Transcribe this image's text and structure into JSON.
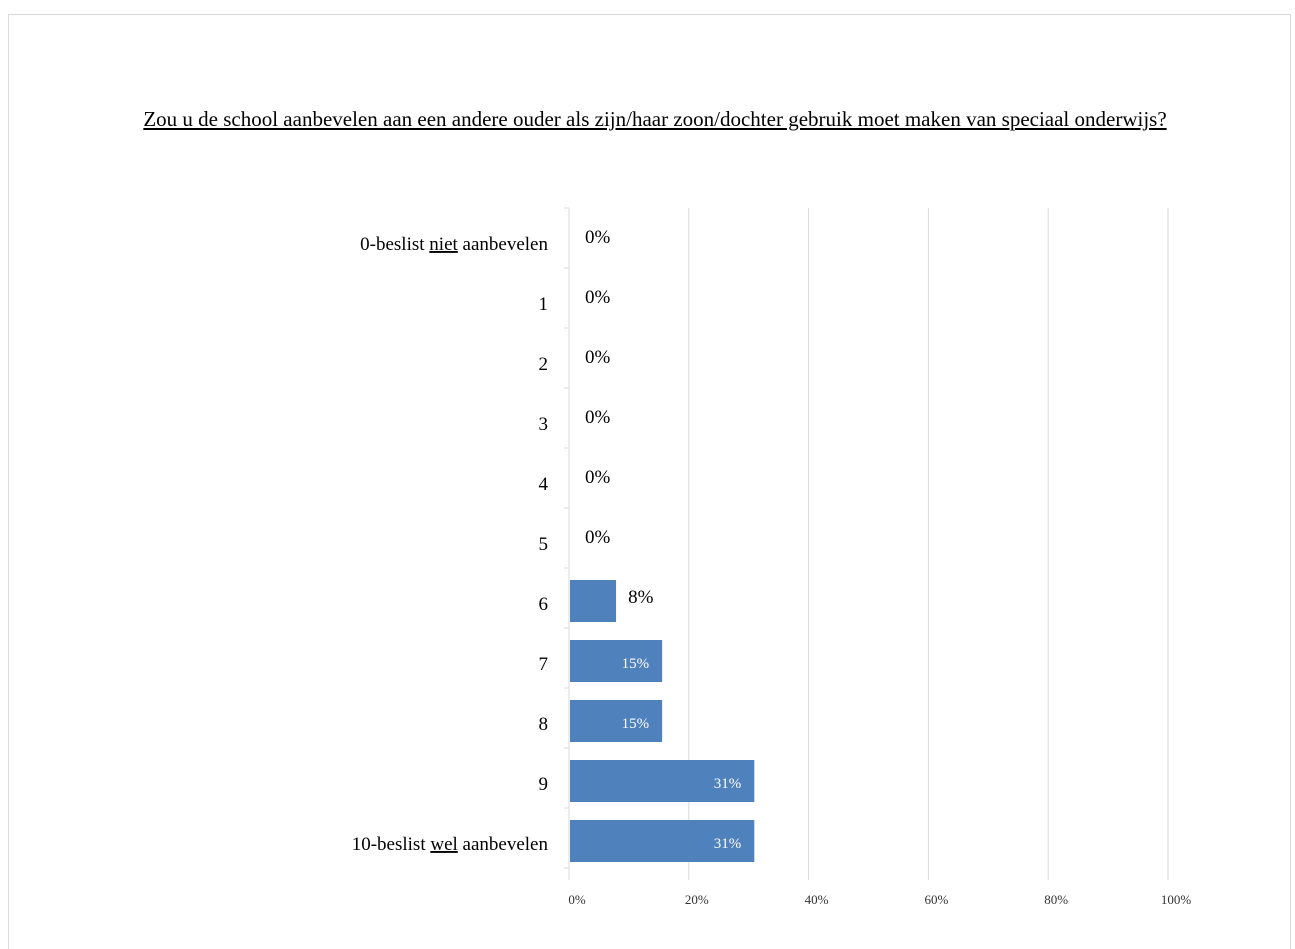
{
  "chart_data": {
    "type": "bar",
    "orientation": "horizontal",
    "title": "Zou u de school aanbevelen aan een andere ouder als zijn/haar zoon/dochter gebruik moet maken van speciaal onderwijs?",
    "categories": [
      {
        "parts": [
          {
            "text": "0-beslist ",
            "u": false
          },
          {
            "text": "niet",
            "u": true
          },
          {
            "text": " aanbevelen",
            "u": false
          }
        ]
      },
      {
        "parts": [
          {
            "text": "1",
            "u": false
          }
        ]
      },
      {
        "parts": [
          {
            "text": "2",
            "u": false
          }
        ]
      },
      {
        "parts": [
          {
            "text": "3",
            "u": false
          }
        ]
      },
      {
        "parts": [
          {
            "text": "4",
            "u": false
          }
        ]
      },
      {
        "parts": [
          {
            "text": "5",
            "u": false
          }
        ]
      },
      {
        "parts": [
          {
            "text": "6",
            "u": false
          }
        ]
      },
      {
        "parts": [
          {
            "text": "7",
            "u": false
          }
        ]
      },
      {
        "parts": [
          {
            "text": "8",
            "u": false
          }
        ]
      },
      {
        "parts": [
          {
            "text": "9",
            "u": false
          }
        ]
      },
      {
        "parts": [
          {
            "text": "10-beslist ",
            "u": false
          },
          {
            "text": "wel",
            "u": true
          },
          {
            "text": " aanbevelen",
            "u": false
          }
        ]
      }
    ],
    "values": [
      0,
      0,
      0,
      0,
      0,
      0,
      7.69,
      15.38,
      15.38,
      30.77,
      30.77
    ],
    "data_labels": [
      "0%",
      "0%",
      "0%",
      "0%",
      "0%",
      "0%",
      "8%",
      "15%",
      "15%",
      "31%",
      "31%"
    ],
    "xlim": [
      0,
      100
    ],
    "xticks": [
      "0%",
      "20%",
      "40%",
      "60%",
      "80%",
      "100%"
    ],
    "grid": true,
    "bar_color": "#4f81bd",
    "grid_color": "#d9d9d9"
  }
}
